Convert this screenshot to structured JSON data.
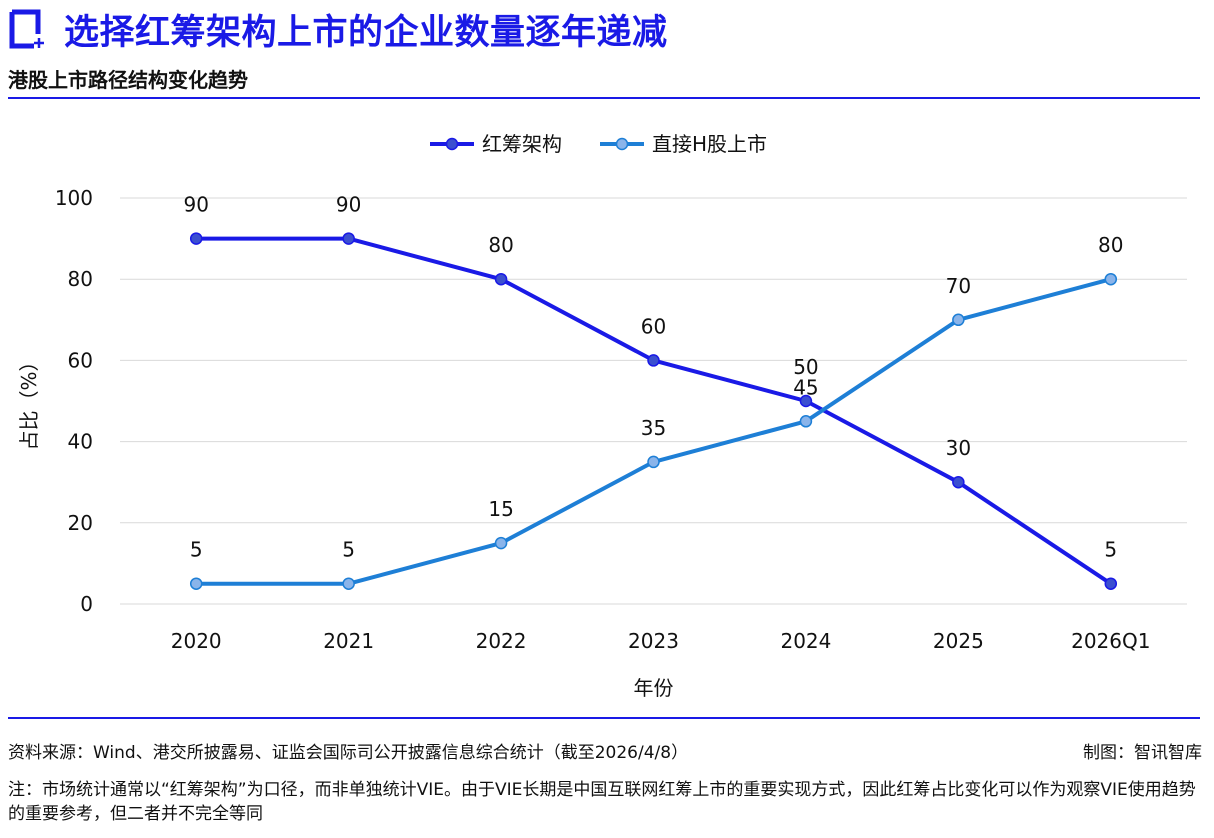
{
  "header": {
    "title": "选择红筹架构上市的企业数量逐年递减",
    "subtitle": "港股上市路径结构变化趋势"
  },
  "colors": {
    "accent": "#1a1ae6",
    "series_red_chip": "#1a1ae6",
    "series_h_share": "#1e7fd6"
  },
  "chart_data": {
    "type": "line",
    "x": [
      "2020",
      "2021",
      "2022",
      "2023",
      "2024",
      "2025",
      "2026Q1"
    ],
    "xlabel": "年份",
    "ylabel": "占比（%）",
    "ylim": [
      0,
      100
    ],
    "yticks": [
      0,
      20,
      40,
      60,
      80,
      100
    ],
    "grid": true,
    "legend": "top-center",
    "series": [
      {
        "name": "红筹架构",
        "values": [
          90,
          90,
          80,
          60,
          50,
          30,
          5
        ],
        "color": "#1a1ae6",
        "marker": "#3b4fd0"
      },
      {
        "name": "直接H股上市",
        "values": [
          5,
          5,
          15,
          35,
          45,
          70,
          80
        ],
        "color": "#1e7fd6",
        "marker": "#8ab4ea"
      }
    ]
  },
  "footer": {
    "source": "资料来源：Wind、港交所披露易、证监会国际司公开披露信息综合统计（截至2026/4/8）",
    "credit": "制图：智讯智库",
    "note": "注：市场统计通常以“红筹架构”为口径，而非单独统计VIE。由于VIE长期是中国互联网红筹上市的重要实现方式，因此红筹占比变化可以作为观察VIE使用趋势的重要参考，但二者并不完全等同"
  }
}
